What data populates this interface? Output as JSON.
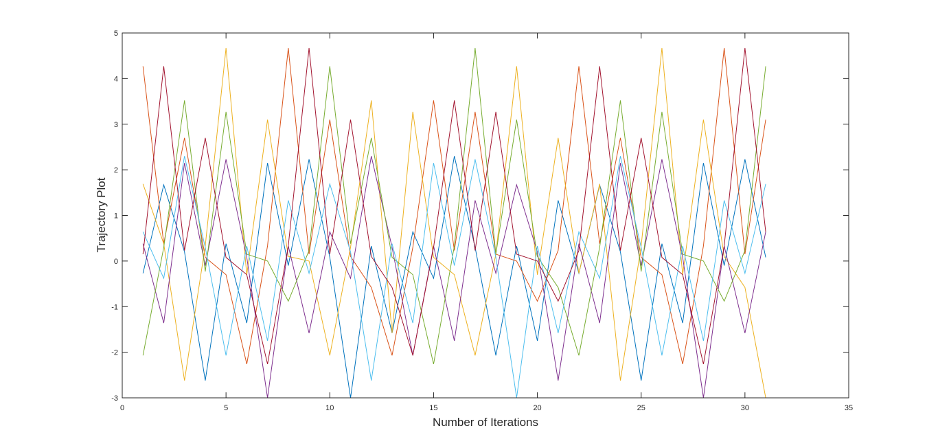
{
  "chart_data": {
    "type": "line",
    "title": "",
    "xlabel": "Number of Iterations",
    "ylabel": "Trajectory Plot",
    "xlim": [
      0,
      35
    ],
    "ylim": [
      -3,
      5
    ],
    "xticks": [
      "0",
      "5",
      "10",
      "15",
      "20",
      "25",
      "30",
      "35"
    ],
    "yticks": [
      "-3",
      "-2",
      "-1",
      "0",
      "1",
      "2",
      "3",
      "4",
      "5"
    ],
    "grid": false,
    "legend": "none",
    "box": true,
    "x": [
      1,
      2,
      3,
      4,
      5,
      6,
      7,
      8,
      9,
      10,
      11,
      12,
      13,
      14,
      15,
      16,
      17,
      18,
      19,
      20,
      21,
      22,
      23,
      24,
      25,
      26,
      27,
      28,
      29,
      30,
      31
    ],
    "series": [
      {
        "color": "#0072BD",
        "values": [
          -0.27,
          1.67,
          0.2,
          -2.62,
          0.38,
          -1.36,
          2.15,
          -0.1,
          2.23,
          0.08,
          -3.0,
          0.33,
          -1.58,
          0.64,
          -0.38,
          2.3,
          0.3,
          -2.07,
          0.33,
          -1.75,
          1.33,
          -0.27,
          1.67,
          0.2,
          -2.62,
          0.38,
          -1.36,
          2.15,
          -0.1,
          2.23,
          0.08
        ]
      },
      {
        "color": "#D95319",
        "values": [
          4.27,
          0.38,
          2.7,
          0.08,
          -0.3,
          -2.26,
          0.33,
          4.67,
          0.15,
          3.1,
          0.1,
          -0.58,
          -2.07,
          0.3,
          3.52,
          0.23,
          3.27,
          0.15,
          0.0,
          -0.88,
          0.23,
          4.27,
          0.38,
          2.7,
          0.08,
          -0.3,
          -2.26,
          0.33,
          4.67,
          0.15,
          3.1
        ]
      },
      {
        "color": "#EDB120",
        "values": [
          1.69,
          0.38,
          -2.62,
          0.33,
          4.67,
          -0.3,
          3.1,
          0.1,
          0.0,
          -2.07,
          0.3,
          3.52,
          -1.58,
          3.27,
          0.08,
          -0.3,
          -2.07,
          0.15,
          4.27,
          -0.3,
          2.7,
          -0.27,
          1.69,
          -2.62,
          0.33,
          4.67,
          -0.3,
          3.1,
          0.1,
          -0.58,
          -3.0
        ]
      },
      {
        "color": "#7E2F8E",
        "values": [
          0.38,
          -1.36,
          2.15,
          -0.1,
          2.23,
          0.08,
          -3.0,
          0.33,
          -1.58,
          0.64,
          -0.38,
          2.3,
          0.3,
          -2.07,
          0.33,
          -1.75,
          1.33,
          -0.27,
          1.67,
          0.2,
          -2.62,
          0.38,
          -1.36,
          2.15,
          -0.1,
          2.23,
          0.08,
          -3.0,
          0.33,
          -1.58,
          0.64
        ]
      },
      {
        "color": "#77AC30",
        "values": [
          -2.07,
          0.3,
          3.52,
          -0.23,
          3.27,
          0.15,
          0.0,
          -0.88,
          0.23,
          4.27,
          0.38,
          2.7,
          0.08,
          -0.3,
          -2.26,
          0.33,
          4.67,
          0.15,
          3.1,
          0.1,
          -0.58,
          -2.07,
          0.3,
          3.52,
          -0.23,
          3.27,
          0.15,
          0.0,
          -0.88,
          0.23,
          4.27
        ]
      },
      {
        "color": "#4DBEEE",
        "values": [
          0.64,
          -0.38,
          2.3,
          0.3,
          -2.07,
          0.33,
          -1.75,
          1.33,
          -0.27,
          1.69,
          0.2,
          -2.62,
          0.38,
          -1.36,
          2.15,
          -0.1,
          2.23,
          0.08,
          -3.0,
          0.33,
          -1.58,
          0.64,
          -0.38,
          2.3,
          0.3,
          -2.07,
          0.33,
          -1.75,
          1.33,
          -0.27,
          1.69
        ]
      },
      {
        "color": "#A2142F",
        "values": [
          0.15,
          4.27,
          0.23,
          2.7,
          0.08,
          -0.3,
          -2.26,
          0.33,
          4.67,
          0.15,
          3.1,
          0.1,
          -0.58,
          -2.07,
          0.3,
          3.52,
          0.23,
          3.27,
          0.15,
          0.0,
          -0.88,
          0.23,
          4.27,
          0.23,
          2.7,
          0.08,
          -0.3,
          -2.26,
          0.33,
          4.67,
          0.64
        ]
      }
    ]
  }
}
